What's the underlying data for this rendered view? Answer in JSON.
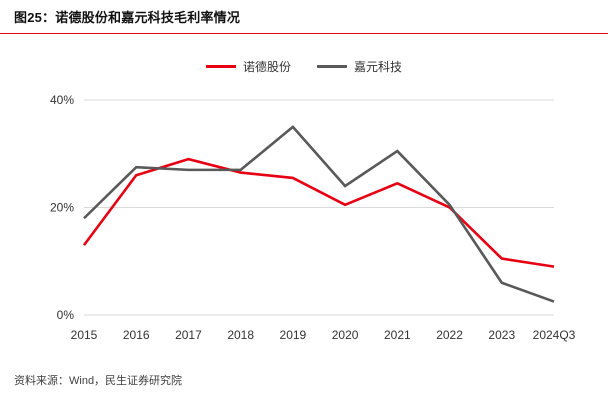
{
  "header": {
    "title": "图25：诺德股份和嘉元科技毛利率情况",
    "accent_color": "#e60012"
  },
  "footer": {
    "source": "资料来源：Wind，民生证券研究院"
  },
  "chart_data": {
    "type": "line",
    "title": "诺德股份和嘉元科技毛利率情况",
    "categories": [
      "2015",
      "2016",
      "2017",
      "2018",
      "2019",
      "2020",
      "2021",
      "2022",
      "2023",
      "2024Q3"
    ],
    "series": [
      {
        "name": "诺德股份",
        "color": "#e60012",
        "values": [
          13,
          26,
          29,
          26.5,
          25.5,
          20.5,
          24.5,
          20,
          10.5,
          9
        ]
      },
      {
        "name": "嘉元科技",
        "color": "#595959",
        "values": [
          18,
          27.5,
          27,
          27,
          35,
          24,
          30.5,
          20.5,
          6,
          2.5
        ]
      }
    ],
    "xlabel": "",
    "ylabel": "",
    "ylim": [
      0,
      40
    ],
    "yticks": [
      0,
      20,
      40
    ],
    "ytick_labels": [
      "0%",
      "20%",
      "40%"
    ],
    "grid": true,
    "gridline_color": "#d9d9d9",
    "legend_position": "top"
  }
}
